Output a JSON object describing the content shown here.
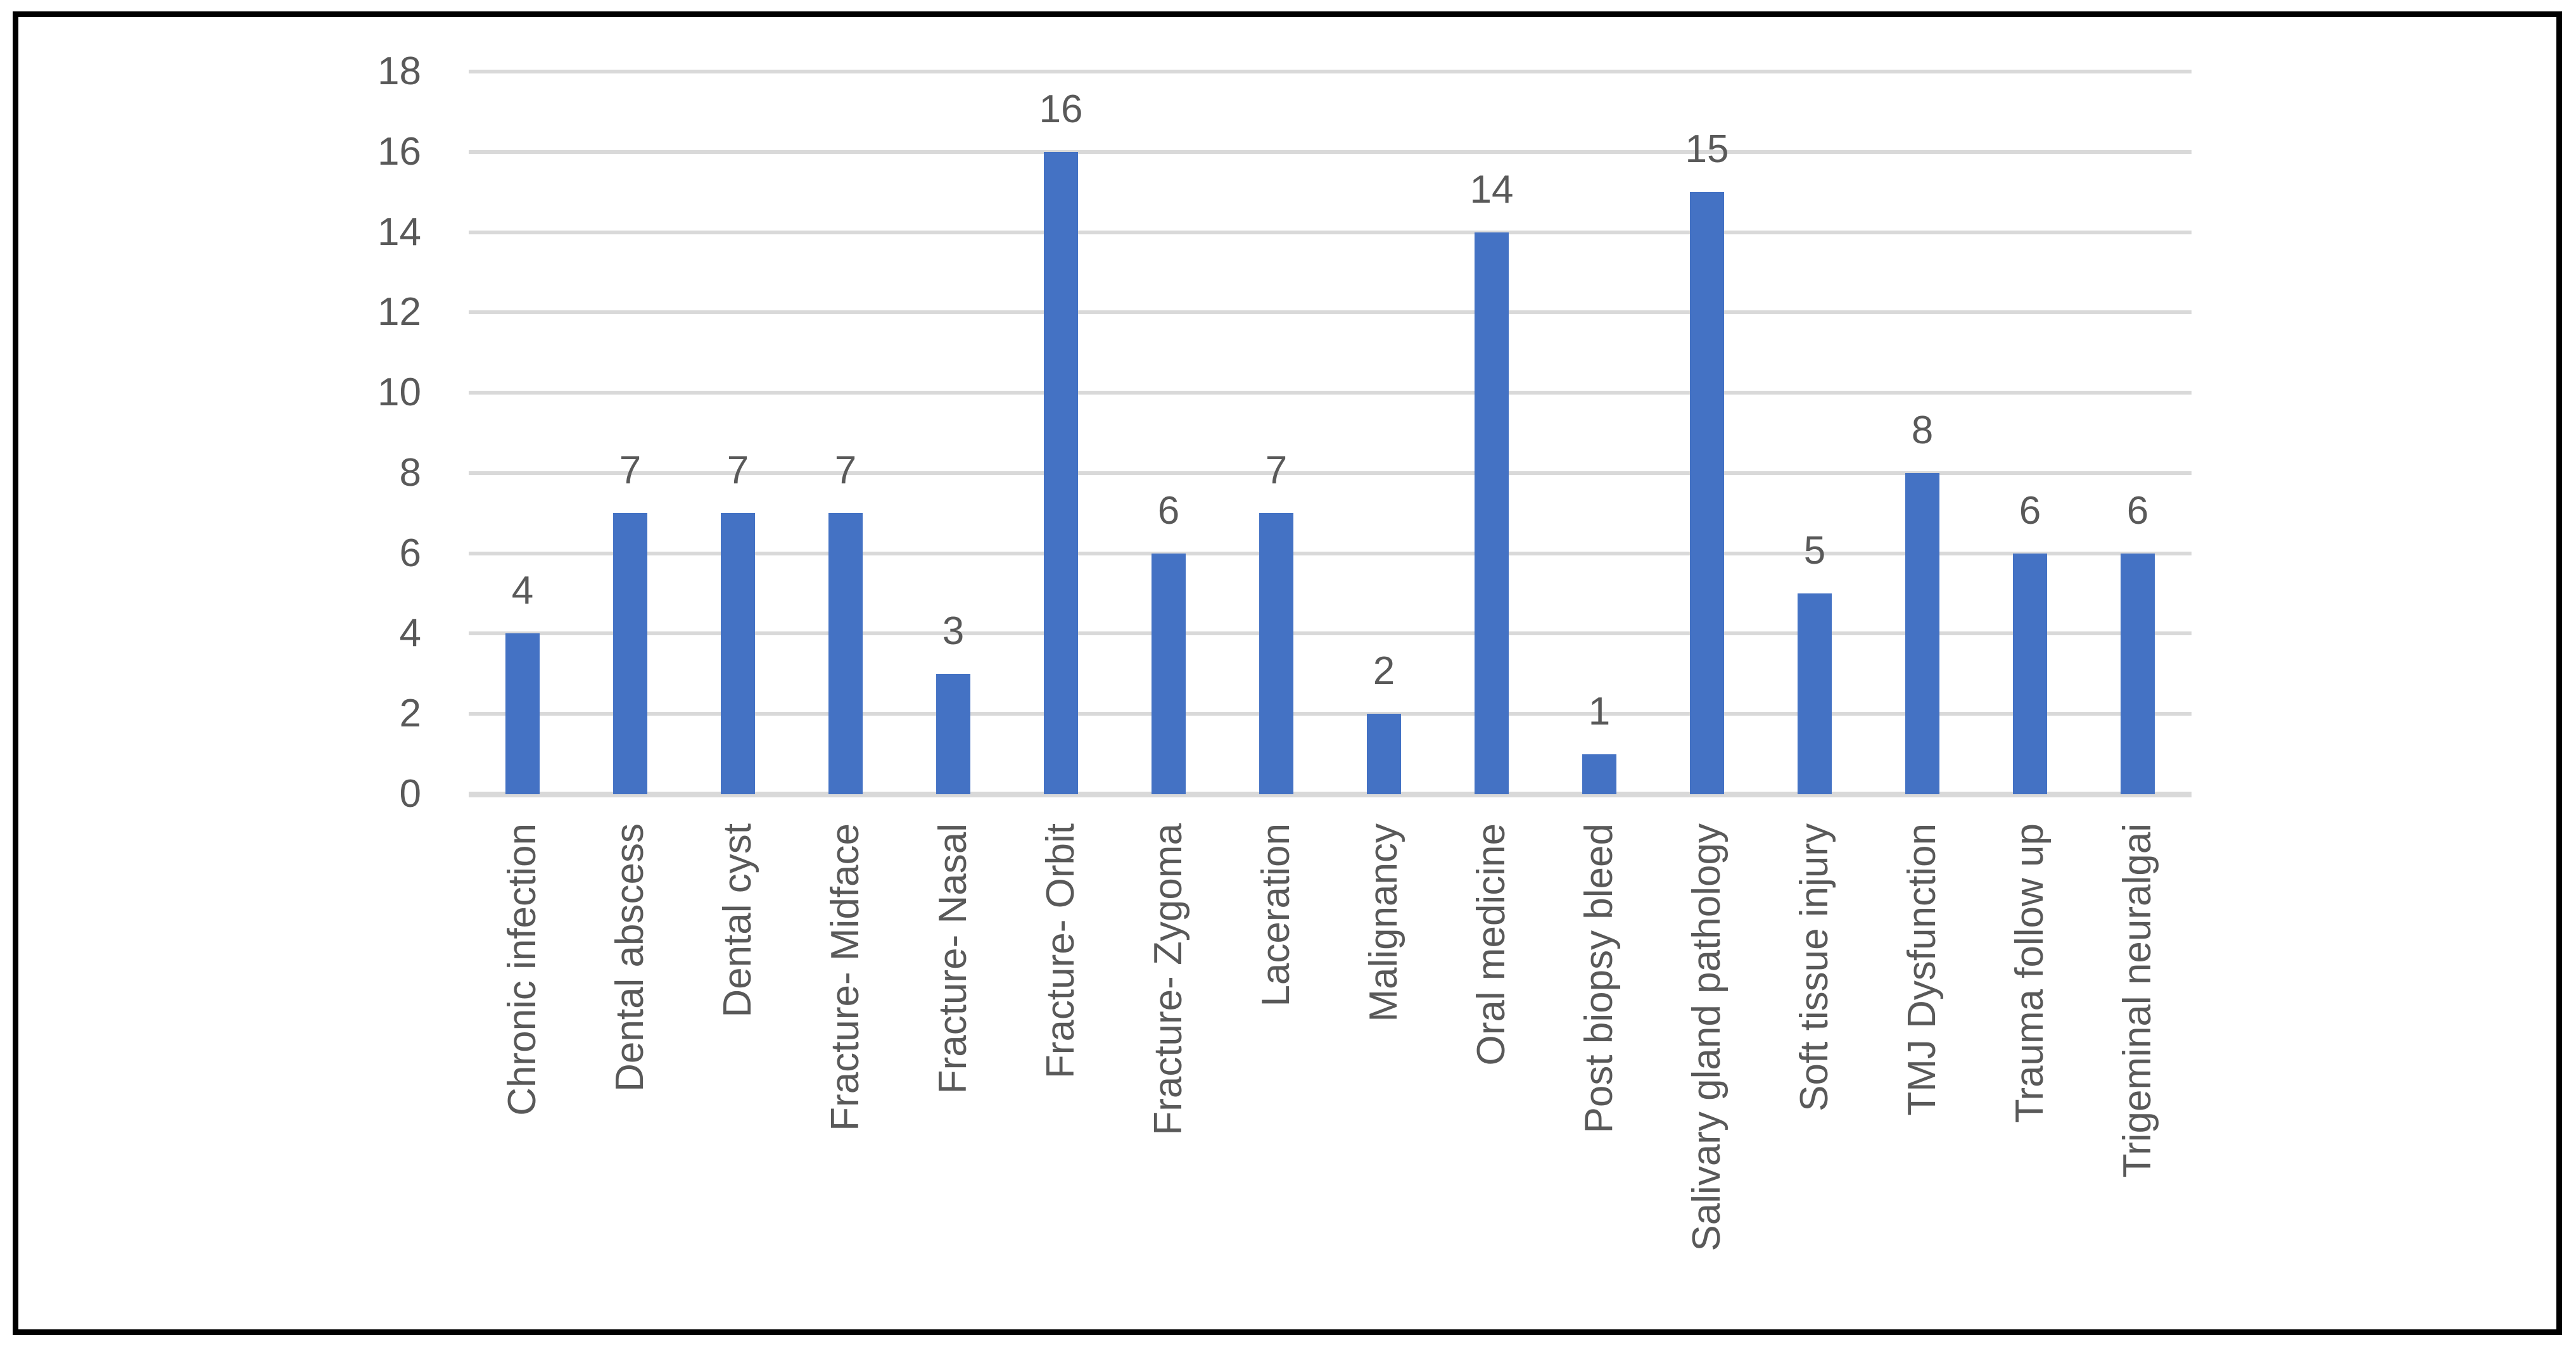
{
  "chart_data": {
    "type": "bar",
    "title": "",
    "xlabel": "",
    "ylabel": "",
    "categories": [
      "Chronic infection",
      "Dental abscess",
      "Dental cyst",
      "Fracture- Midface",
      "Fracture- Nasal",
      "Fracture- Orbit",
      "Fracture- Zygoma",
      "Laceration",
      "Malignancy",
      "Oral medicine",
      "Post biopsy bleed",
      "Salivary gland pathology",
      "Soft tissue injury",
      "TMJ Dysfunction",
      "Trauma follow up",
      "Trigeminal neuralgai"
    ],
    "values": [
      4,
      7,
      7,
      7,
      3,
      16,
      6,
      7,
      2,
      14,
      1,
      15,
      5,
      8,
      6,
      6
    ],
    "value_labels_shown": true,
    "yticks": [
      0,
      2,
      4,
      6,
      8,
      10,
      12,
      14,
      16,
      18
    ],
    "ylim": [
      0,
      18
    ],
    "grid": "horizontal",
    "legend": "none",
    "bar_color": "#4472C4",
    "gridline_color": "#D9D9D9",
    "axis_line_color": "#D9D9D9",
    "text_color": "#595959",
    "frame_border_color": "#000000",
    "background_color": "#FFFFFF"
  }
}
